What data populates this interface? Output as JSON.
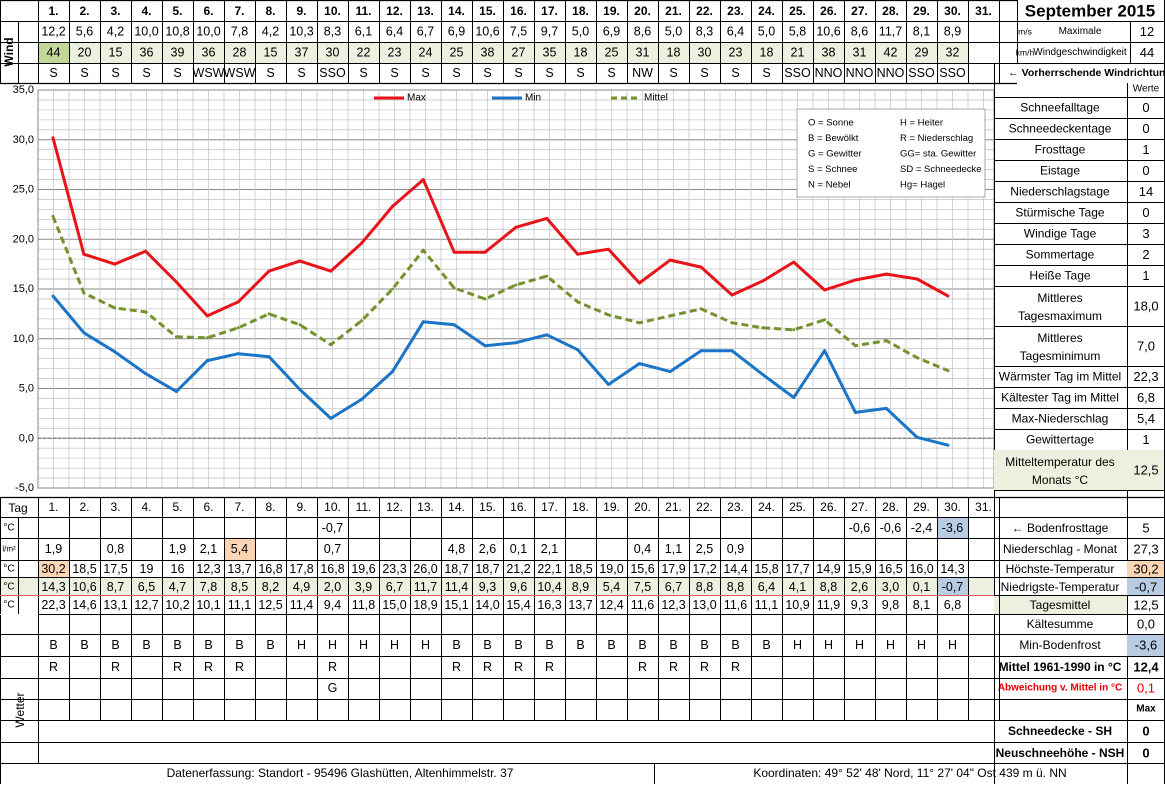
{
  "header": {
    "title": "September 2015",
    "wind_label": "Wind",
    "unit_ms": "m/s",
    "unit_kmh": "km/h",
    "max_label": "Maximale",
    "max_label2": "Windgeschwindigkeit",
    "max_ms": "12",
    "max_kmh": "44",
    "dir_label": "← Vorherrschende Windrichtung"
  },
  "days": [
    "1.",
    "2.",
    "3.",
    "4.",
    "5.",
    "6.",
    "7.",
    "8.",
    "9.",
    "10.",
    "11.",
    "12.",
    "13.",
    "14.",
    "15.",
    "16.",
    "17.",
    "18.",
    "19.",
    "20.",
    "21.",
    "22.",
    "23.",
    "24.",
    "25.",
    "26.",
    "27.",
    "28.",
    "29.",
    "30.",
    "31."
  ],
  "wind": {
    "ms": [
      "12,2",
      "5,6",
      "4,2",
      "10,0",
      "10,8",
      "10,0",
      "7,8",
      "4,2",
      "10,3",
      "8,3",
      "6,1",
      "6,4",
      "6,7",
      "6,9",
      "10,6",
      "7,5",
      "9,7",
      "5,0",
      "6,9",
      "8,6",
      "5,0",
      "8,3",
      "6,4",
      "5,0",
      "5,8",
      "10,6",
      "8,6",
      "11,7",
      "8,1",
      "8,9",
      ""
    ],
    "kmh": [
      "44",
      "20",
      "15",
      "36",
      "39",
      "36",
      "28",
      "15",
      "37",
      "30",
      "22",
      "23",
      "24",
      "25",
      "38",
      "27",
      "35",
      "18",
      "25",
      "31",
      "18",
      "30",
      "23",
      "18",
      "21",
      "38",
      "31",
      "42",
      "29",
      "32",
      ""
    ],
    "dir": [
      "S",
      "S",
      "S",
      "S",
      "S",
      "WSW",
      "WSW",
      "S",
      "S",
      "SSO",
      "S",
      "S",
      "S",
      "S",
      "S",
      "S",
      "S",
      "S",
      "S",
      "NW",
      "S",
      "S",
      "S",
      "S",
      "SSO",
      "NNO",
      "NNO",
      "NNO",
      "SSO",
      "SSO",
      ""
    ]
  },
  "chart_data": {
    "type": "line",
    "x": [
      1,
      2,
      3,
      4,
      5,
      6,
      7,
      8,
      9,
      10,
      11,
      12,
      13,
      14,
      15,
      16,
      17,
      18,
      19,
      20,
      21,
      22,
      23,
      24,
      25,
      26,
      27,
      28,
      29,
      30
    ],
    "series": [
      {
        "name": "Max",
        "color": "#e8141a",
        "values": [
          30.2,
          18.5,
          17.5,
          18.8,
          15.7,
          12.3,
          13.7,
          16.8,
          17.8,
          16.8,
          19.6,
          23.3,
          26.0,
          18.7,
          18.7,
          21.2,
          22.1,
          18.5,
          19.0,
          15.6,
          17.9,
          17.2,
          14.4,
          15.8,
          17.7,
          14.9,
          15.9,
          16.5,
          16.0,
          14.3
        ]
      },
      {
        "name": "Min",
        "color": "#1a75c8",
        "values": [
          14.3,
          10.6,
          8.7,
          6.5,
          4.7,
          7.8,
          8.5,
          8.2,
          4.9,
          2.0,
          3.9,
          6.7,
          11.7,
          11.4,
          9.3,
          9.6,
          10.4,
          8.9,
          5.4,
          7.5,
          6.7,
          8.8,
          8.8,
          6.4,
          4.1,
          8.8,
          2.6,
          3.0,
          0.1,
          -0.7
        ]
      },
      {
        "name": "Mittel",
        "color": "#76922e",
        "dashed": true,
        "values": [
          22.3,
          14.6,
          13.1,
          12.7,
          10.2,
          10.1,
          11.1,
          12.5,
          11.4,
          9.4,
          11.8,
          15.0,
          18.9,
          15.1,
          14.0,
          15.4,
          16.3,
          13.7,
          12.4,
          11.6,
          12.3,
          13.0,
          11.6,
          11.1,
          10.9,
          11.9,
          9.3,
          9.8,
          8.1,
          6.8
        ]
      }
    ],
    "ylim": [
      -5,
      35
    ],
    "yticks": [
      "35,0",
      "30,0",
      "25,0",
      "20,0",
      "15,0",
      "10,0",
      "5,0",
      "0,0",
      "-5,0"
    ],
    "grid": true,
    "legend_position": "top"
  },
  "legend_box": [
    [
      "O = Sonne",
      "H = Heiter"
    ],
    [
      "B = Bewölkt",
      "R = Niederschlag"
    ],
    [
      "G = Gewitter",
      "GG= sta. Gewitter"
    ],
    [
      "S = Schnee",
      "SD = Schneedecke"
    ],
    [
      "N = Nebel",
      "Hg= Hagel"
    ]
  ],
  "right_panel": {
    "werte_label": "Werte",
    "rows": [
      {
        "label": "Schneefalltage",
        "value": "0"
      },
      {
        "label": "Schneedeckentage",
        "value": "0"
      },
      {
        "label": "Frosttage",
        "value": "1"
      },
      {
        "label": "Eistage",
        "value": "0"
      },
      {
        "label": "Niederschlagstage",
        "value": "14"
      },
      {
        "label": "Stürmische Tage",
        "value": "0"
      },
      {
        "label": "Windige Tage",
        "value": "3"
      },
      {
        "label": "Sommertage",
        "value": "2"
      },
      {
        "label": "Heiße Tage",
        "value": "1"
      },
      {
        "label": "Mittleres Tagesmaximum",
        "value": "18,0"
      },
      {
        "label": "Mittleres Tagesminimum",
        "value": "7,0"
      },
      {
        "label": "Wärmster Tag im Mittel",
        "value": "22,3"
      },
      {
        "label": "Kältester Tag im Mittel",
        "value": "6,8"
      },
      {
        "label": "Max-Niederschlag",
        "value": "5,4"
      },
      {
        "label": "Gewittertage",
        "value": "1"
      },
      {
        "label": "Mitteltemperatur des Monats °C",
        "value": "12,5"
      }
    ]
  },
  "bottom": {
    "tag_label": "Tag",
    "unit_c": "°C",
    "unit_lm2": "l/m²",
    "wetter_label": "Wetter",
    "bodenfrost": [
      "",
      "",
      "",
      "",
      "",
      "",
      "",
      "",
      "",
      "-0,7",
      "",
      "",
      "",
      "",
      "",
      "",
      "",
      "",
      "",
      "",
      "",
      "",
      "",
      "",
      "",
      "",
      "-0,6",
      "-0,6",
      "-2,4",
      "-3,6",
      ""
    ],
    "niederschlag": [
      "1,9",
      "",
      "0,8",
      "",
      "1,9",
      "2,1",
      "5,4",
      "",
      "",
      "0,7",
      "",
      "",
      "",
      "4,8",
      "2,6",
      "0,1",
      "2,1",
      "",
      "",
      "0,4",
      "1,1",
      "2,5",
      "0,9",
      "",
      "",
      "",
      "",
      "",
      "",
      "",
      ""
    ],
    "hoechst": [
      "30,2",
      "18,5",
      "17,5",
      "19",
      "16",
      "12,3",
      "13,7",
      "16,8",
      "17,8",
      "16,8",
      "19,6",
      "23,3",
      "26,0",
      "18,7",
      "18,7",
      "21,2",
      "22,1",
      "18,5",
      "19,0",
      "15,6",
      "17,9",
      "17,2",
      "14,4",
      "15,8",
      "17,7",
      "14,9",
      "15,9",
      "16,5",
      "16,0",
      "14,3",
      ""
    ],
    "niedrigst": [
      "14,3",
      "10,6",
      "8,7",
      "6,5",
      "4,7",
      "7,8",
      "8,5",
      "8,2",
      "4,9",
      "2,0",
      "3,9",
      "6,7",
      "11,7",
      "11,4",
      "9,3",
      "9,6",
      "10,4",
      "8,9",
      "5,4",
      "7,5",
      "6,7",
      "8,8",
      "8,8",
      "6,4",
      "4,1",
      "8,8",
      "2,6",
      "3,0",
      "0,1",
      "-0,7",
      ""
    ],
    "mittel": [
      "22,3",
      "14,6",
      "13,1",
      "12,7",
      "10,2",
      "10,1",
      "11,1",
      "12,5",
      "11,4",
      "9,4",
      "11,8",
      "15,0",
      "18,9",
      "15,1",
      "14,0",
      "15,4",
      "16,3",
      "13,7",
      "12,4",
      "11,6",
      "12,3",
      "13,0",
      "11,6",
      "11,1",
      "10,9",
      "11,9",
      "9,3",
      "9,8",
      "8,1",
      "6,8",
      ""
    ],
    "wetter1": [
      "B",
      "B",
      "B",
      "B",
      "B",
      "B",
      "B",
      "B",
      "H",
      "H",
      "H",
      "H",
      "H",
      "B",
      "B",
      "B",
      "B",
      "B",
      "B",
      "B",
      "B",
      "B",
      "B",
      "B",
      "H",
      "H",
      "H",
      "H",
      "H",
      "H",
      ""
    ],
    "wetter2": [
      "R",
      "",
      "R",
      "",
      "R",
      "R",
      "R",
      "",
      "",
      "R",
      "",
      "",
      "",
      "R",
      "R",
      "R",
      "R",
      "",
      "",
      "R",
      "R",
      "R",
      "R",
      "",
      "",
      "",
      "",
      "",
      "",
      "",
      ""
    ],
    "wetter3": [
      "",
      "",
      "",
      "",
      "",
      "",
      "",
      "",
      "",
      "G",
      "",
      "",
      "",
      "",
      "",
      "",
      "",
      "",
      "",
      "",
      "",
      "",
      "",
      "",
      "",
      "",
      "",
      "",
      "",
      "",
      ""
    ],
    "summary": [
      {
        "label": "← Bodenfrosttage",
        "value": "5"
      },
      {
        "label": "Niederschlag - Monat",
        "value": "27,3"
      },
      {
        "label": "Höchste-Temperatur",
        "value": "30,2"
      },
      {
        "label": "Niedrigste-Temperatur",
        "value": "-0,7"
      },
      {
        "label": "Tagesmittel",
        "value": "12,5"
      },
      {
        "label": "Kältesumme",
        "value": "0,0"
      },
      {
        "label": "Min-Bodenfrost",
        "value": "-3,6"
      },
      {
        "label": "Mittel 1961-1990 in °C",
        "value": "12,4"
      },
      {
        "label": "Abweichung v. Mittel in °C",
        "value": "0,1"
      },
      {
        "label": "",
        "value": "Max"
      },
      {
        "label": "Schneedecke -   SH",
        "value": "0"
      },
      {
        "label": "Neuschneehöhe - NSH",
        "value": "0"
      }
    ]
  },
  "footer": {
    "left": "Datenerfassung:  Standort -   95496  Glashütten, Altenhimmelstr. 37",
    "right": "Koordinaten:  49° 52' 48' Nord,   11° 27' 04\" Ost   439 m ü. NN"
  }
}
